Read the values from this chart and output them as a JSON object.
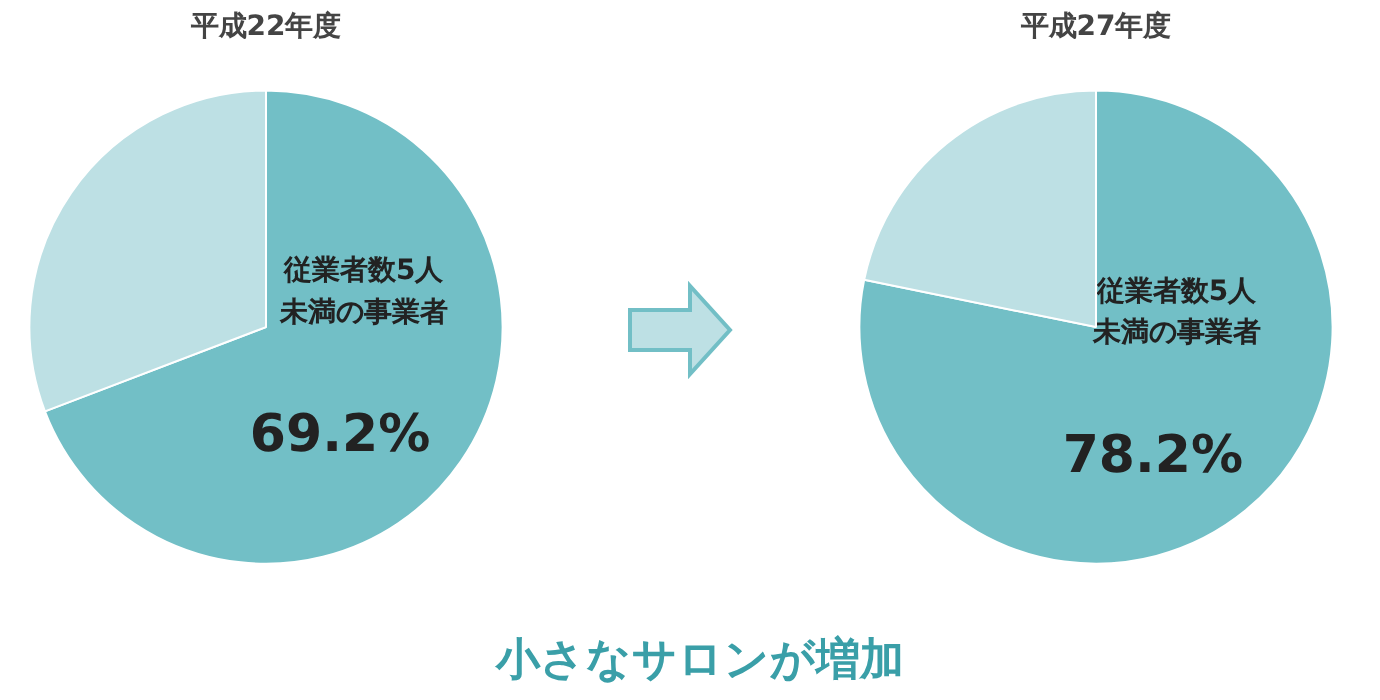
{
  "chart_data": [
    {
      "type": "pie",
      "title": "平成22年度",
      "categories": [
        "従業者数5人未満の事業者",
        null
      ],
      "values": [
        69.2,
        30.8
      ],
      "colors": [
        "#72bfc6",
        "#bde0e4"
      ],
      "value_labels": [
        "69.2%",
        null
      ]
    },
    {
      "type": "pie",
      "title": "平成27年度",
      "categories": [
        "従業者数5人未満の事業者",
        null
      ],
      "values": [
        78.2,
        21.8
      ],
      "colors": [
        "#72bfc6",
        "#bde0e4"
      ],
      "value_labels": [
        "78.2%",
        null
      ],
      "annotations": [
        "小さなサロンが増加"
      ]
    }
  ]
}
